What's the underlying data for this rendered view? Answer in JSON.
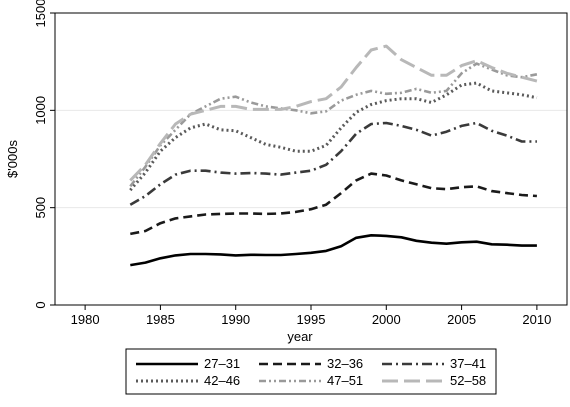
{
  "chart_data": {
    "type": "line",
    "xlabel": "year",
    "ylabel": "$'000s",
    "xlim": [
      1978,
      2012
    ],
    "ylim": [
      0,
      1500
    ],
    "xticks": [
      1980,
      1985,
      1990,
      1995,
      2000,
      2005,
      2010
    ],
    "yticks": [
      0,
      500,
      1000,
      1500
    ],
    "xtick_labels": [
      "1980",
      "1985",
      "1990",
      "1995",
      "2000",
      "2005",
      "2010"
    ],
    "ytick_labels": [
      "0",
      "500",
      "1000",
      "1500"
    ],
    "grid": "horizontal",
    "legend_position": "bottom",
    "x": [
      1983,
      1984,
      1985,
      1986,
      1987,
      1988,
      1989,
      1990,
      1991,
      1992,
      1993,
      1994,
      1995,
      1996,
      1997,
      1998,
      1999,
      2000,
      2001,
      2002,
      2003,
      2004,
      2005,
      2006,
      2007,
      2008,
      2009,
      2010
    ],
    "series": [
      {
        "name": "27–31",
        "color": "#000000",
        "dash": "solid",
        "values": [
          205,
          218,
          240,
          255,
          262,
          262,
          260,
          255,
          258,
          257,
          257,
          262,
          268,
          278,
          302,
          345,
          358,
          355,
          348,
          330,
          320,
          315,
          322,
          325,
          312,
          310,
          305,
          305
        ]
      },
      {
        "name": "32–36",
        "color": "#1a1a1a",
        "dash": "dash",
        "values": [
          365,
          380,
          420,
          445,
          455,
          465,
          468,
          470,
          470,
          468,
          470,
          478,
          492,
          515,
          575,
          640,
          675,
          665,
          640,
          620,
          600,
          595,
          605,
          610,
          585,
          575,
          565,
          560
        ]
      },
      {
        "name": "37–41",
        "color": "#3a3a3a",
        "dash": "dashdot",
        "values": [
          515,
          560,
          620,
          670,
          690,
          690,
          680,
          675,
          678,
          675,
          670,
          680,
          690,
          720,
          790,
          880,
          930,
          935,
          920,
          900,
          870,
          890,
          920,
          935,
          895,
          870,
          840,
          840
        ]
      },
      {
        "name": "42–46",
        "color": "#5a5a5a",
        "dash": "dot",
        "values": [
          590,
          680,
          790,
          860,
          910,
          930,
          900,
          895,
          860,
          825,
          810,
          790,
          790,
          820,
          910,
          990,
          1030,
          1050,
          1060,
          1060,
          1040,
          1080,
          1130,
          1140,
          1100,
          1090,
          1080,
          1065
        ]
      },
      {
        "name": "47–51",
        "color": "#9a9a9a",
        "dash": "dashdotdot",
        "values": [
          610,
          710,
          820,
          900,
          980,
          1020,
          1060,
          1070,
          1040,
          1020,
          1010,
          1000,
          985,
          995,
          1050,
          1080,
          1100,
          1085,
          1090,
          1110,
          1090,
          1100,
          1190,
          1240,
          1210,
          1180,
          1170,
          1185
        ]
      },
      {
        "name": "52–58",
        "color": "#b8b8b8",
        "dash": "longdash",
        "values": [
          640,
          720,
          830,
          930,
          980,
          1000,
          1020,
          1020,
          1005,
          1005,
          1005,
          1020,
          1045,
          1060,
          1120,
          1220,
          1310,
          1330,
          1260,
          1220,
          1180,
          1180,
          1230,
          1255,
          1220,
          1190,
          1170,
          1150
        ]
      }
    ]
  }
}
